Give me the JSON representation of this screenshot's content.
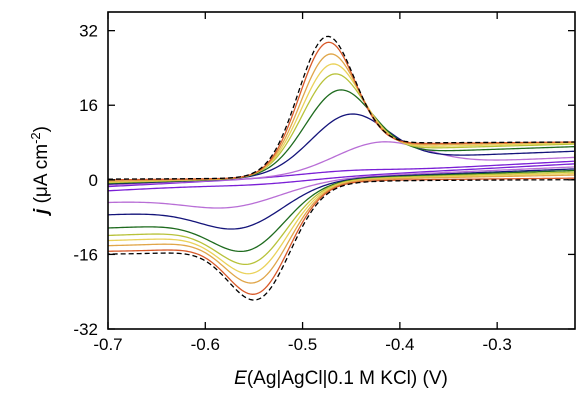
{
  "chart_data": {
    "type": "line",
    "title": "",
    "xlabel": {
      "symbol": "E",
      "rest": "(Ag|AgCl|0.1 M KCl) (V)"
    },
    "ylabel": {
      "symbol": "j",
      "unit_main": " (μA cm",
      "unit_exp": "-2",
      "unit_close": ")"
    },
    "xlim": [
      -0.7,
      -0.22
    ],
    "ylim": [
      -32,
      36
    ],
    "x_ticks": [
      -0.7,
      -0.6,
      -0.5,
      -0.4,
      -0.3
    ],
    "x_tick_labels": [
      "-0.7",
      "-0.6",
      "-0.5",
      "-0.4",
      "-0.3"
    ],
    "y_ticks": [
      -32,
      -16,
      0,
      16,
      32
    ],
    "y_tick_labels": [
      "-32",
      "-16",
      "0",
      "16",
      "32"
    ],
    "grid": false,
    "legend": "none",
    "series": [
      {
        "color": "#7a1fd6",
        "dash": false,
        "ipc": 0.8,
        "ipa": -1.0,
        "epc": -0.46,
        "epa": -0.53,
        "w": 0.04,
        "slope": 11,
        "off": 0.2
      },
      {
        "color": "#b86ed6",
        "dash": false,
        "ipc": 7.5,
        "ipa": -6.5,
        "epc": -0.425,
        "epa": -0.56,
        "w": 0.04,
        "slope": 9,
        "off": 0.2
      },
      {
        "color": "#14147a",
        "dash": false,
        "ipc": 14.5,
        "ipa": -12.0,
        "epc": -0.455,
        "epa": -0.555,
        "w": 0.034,
        "slope": 8,
        "off": 0.3
      },
      {
        "color": "#1e6b1e",
        "dash": false,
        "ipc": 20.5,
        "ipa": -18.0,
        "epc": -0.465,
        "epa": -0.55,
        "w": 0.03,
        "slope": 7,
        "off": 0.3
      },
      {
        "color": "#b8c23a",
        "dash": false,
        "ipc": 24.5,
        "ipa": -21.5,
        "epc": -0.47,
        "epa": -0.547,
        "w": 0.028,
        "slope": 6,
        "off": 0.3
      },
      {
        "color": "#ead25a",
        "dash": false,
        "ipc": 27.0,
        "ipa": -24.0,
        "epc": -0.472,
        "epa": -0.545,
        "w": 0.027,
        "slope": 5,
        "off": 0.3
      },
      {
        "color": "#e0a64a",
        "dash": false,
        "ipc": 29.5,
        "ipa": -26.5,
        "epc": -0.474,
        "epa": -0.543,
        "w": 0.026,
        "slope": 4,
        "off": 0.3
      },
      {
        "color": "#d85a2a",
        "dash": false,
        "ipc": 32.5,
        "ipa": -29.5,
        "epc": -0.476,
        "epa": -0.542,
        "w": 0.025,
        "slope": 2,
        "off": 0.3
      },
      {
        "color": "#000000",
        "dash": true,
        "ipc": 34.0,
        "ipa": -31.0,
        "epc": -0.477,
        "epa": -0.541,
        "w": 0.025,
        "slope": 1,
        "off": 0.3
      }
    ]
  }
}
